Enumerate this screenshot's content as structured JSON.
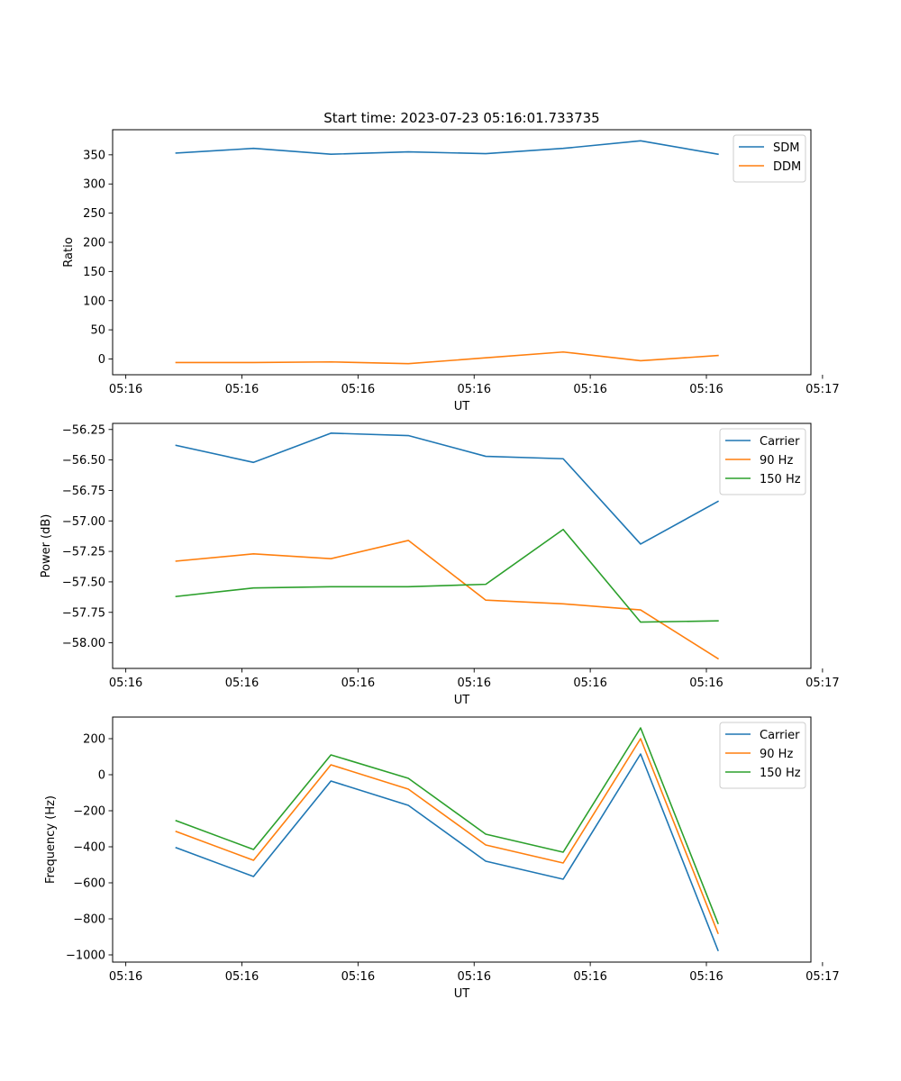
{
  "figure": {
    "title": "Start time: 2023-07-23 05:16:01.733735"
  },
  "chart_data": [
    {
      "type": "line",
      "title": "Start time: 2023-07-23 05:16:01.733735",
      "xlabel": "UT",
      "ylabel": "Ratio",
      "x": [
        1,
        2,
        3,
        4,
        5,
        6,
        7,
        8
      ],
      "xlim": [
        0.18,
        9.2
      ],
      "x_ticks": [
        0.35,
        1.85,
        3.35,
        4.85,
        6.35,
        7.85,
        9.35
      ],
      "x_tick_labels": [
        "05:16",
        "05:16",
        "05:16",
        "05:16",
        "05:16",
        "05:16",
        "05:17"
      ],
      "ylim": [
        -27,
        393
      ],
      "y_ticks": [
        0,
        50,
        100,
        150,
        200,
        250,
        300,
        350
      ],
      "y_tick_labels": [
        "0",
        "50",
        "100",
        "150",
        "200",
        "250",
        "300",
        "350"
      ],
      "legend_position": "top-right",
      "grid": false,
      "series": [
        {
          "name": "SDM",
          "color": "#1f77b4",
          "values": [
            353,
            361,
            351,
            355,
            352,
            361,
            374,
            351
          ]
        },
        {
          "name": "DDM",
          "color": "#ff7f0e",
          "values": [
            -6,
            -6,
            -5,
            -8,
            2,
            12,
            -3,
            6
          ]
        }
      ]
    },
    {
      "type": "line",
      "title": "",
      "xlabel": "UT",
      "ylabel": "Power (dB)",
      "x": [
        1,
        2,
        3,
        4,
        5,
        6,
        7,
        8
      ],
      "xlim": [
        0.18,
        9.2
      ],
      "x_ticks": [
        0.35,
        1.85,
        3.35,
        4.85,
        6.35,
        7.85,
        9.35
      ],
      "x_tick_labels": [
        "05:16",
        "05:16",
        "05:16",
        "05:16",
        "05:16",
        "05:16",
        "05:17"
      ],
      "ylim": [
        -58.21,
        -56.2
      ],
      "y_ticks": [
        -58.0,
        -57.75,
        -57.5,
        -57.25,
        -57.0,
        -56.75,
        -56.5,
        -56.25
      ],
      "y_tick_labels": [
        "−58.00",
        "−57.75",
        "−57.50",
        "−57.25",
        "−57.00",
        "−56.75",
        "−56.50",
        "−56.25"
      ],
      "legend_position": "top-right",
      "grid": false,
      "series": [
        {
          "name": "Carrier",
          "color": "#1f77b4",
          "values": [
            -56.38,
            -56.52,
            -56.28,
            -56.3,
            -56.47,
            -56.49,
            -57.19,
            -56.84
          ]
        },
        {
          "name": "90 Hz",
          "color": "#ff7f0e",
          "values": [
            -57.33,
            -57.27,
            -57.31,
            -57.16,
            -57.65,
            -57.68,
            -57.73,
            -58.13
          ]
        },
        {
          "name": "150 Hz",
          "color": "#2ca02c",
          "values": [
            -57.62,
            -57.55,
            -57.54,
            -57.54,
            -57.52,
            -57.07,
            -57.83,
            -57.82
          ]
        }
      ]
    },
    {
      "type": "line",
      "title": "",
      "xlabel": "UT",
      "ylabel": "Frequency (Hz)",
      "x": [
        1,
        2,
        3,
        4,
        5,
        6,
        7,
        8
      ],
      "xlim": [
        0.18,
        9.2
      ],
      "x_ticks": [
        0.35,
        1.85,
        3.35,
        4.85,
        6.35,
        7.85,
        9.35
      ],
      "x_tick_labels": [
        "05:16",
        "05:16",
        "05:16",
        "05:16",
        "05:16",
        "05:16",
        "05:17"
      ],
      "ylim": [
        -1040,
        320
      ],
      "y_ticks": [
        -1000,
        -800,
        -600,
        -400,
        -200,
        0,
        200
      ],
      "y_tick_labels": [
        "−1000",
        "−800",
        "−600",
        "−400",
        "−200",
        "0",
        "200"
      ],
      "legend_position": "top-right",
      "grid": false,
      "series": [
        {
          "name": "Carrier",
          "color": "#1f77b4",
          "values": [
            -405,
            -565,
            -35,
            -170,
            -480,
            -580,
            115,
            -975
          ]
        },
        {
          "name": "90 Hz",
          "color": "#ff7f0e",
          "values": [
            -315,
            -475,
            55,
            -80,
            -390,
            -490,
            200,
            -880
          ]
        },
        {
          "name": "150 Hz",
          "color": "#2ca02c",
          "values": [
            -255,
            -415,
            110,
            -20,
            -330,
            -430,
            260,
            -825
          ]
        }
      ]
    }
  ]
}
